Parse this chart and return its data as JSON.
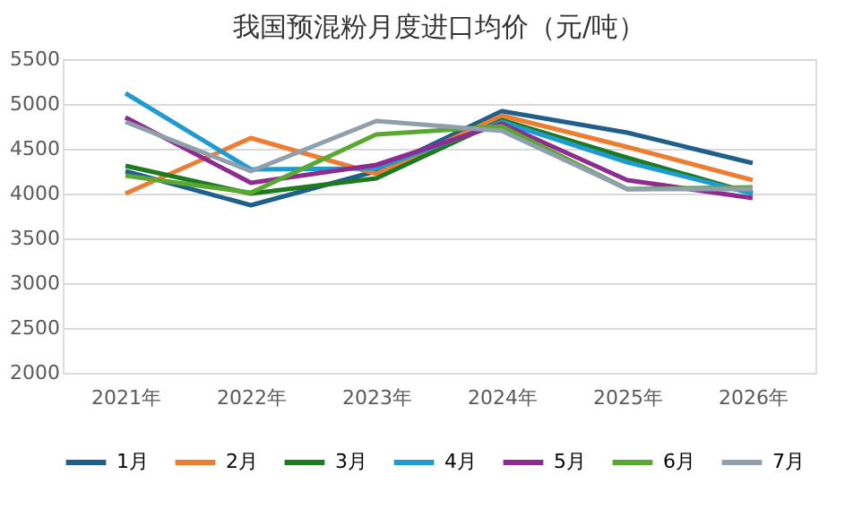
{
  "chart_data": {
    "type": "line",
    "title": "我国预混粉月度进口均价（元/吨）",
    "categories": [
      "2021年",
      "2022年",
      "2023年",
      "2024年",
      "2025年",
      "2026年"
    ],
    "series": [
      {
        "name": "1月",
        "color": "#1f5f8b",
        "values": [
          4250,
          3870,
          4250,
          4920,
          4680,
          4340
        ]
      },
      {
        "name": "2月",
        "color": "#ed7d31",
        "values": [
          4000,
          4620,
          4220,
          4870,
          4520,
          4150
        ]
      },
      {
        "name": "3月",
        "color": "#1e7a1e",
        "values": [
          4310,
          4000,
          4170,
          4820,
          4400,
          4000
        ]
      },
      {
        "name": "4月",
        "color": "#1f9bd0",
        "values": [
          5120,
          4270,
          4280,
          4800,
          4350,
          4000
        ]
      },
      {
        "name": "5月",
        "color": "#8e2b8e",
        "values": [
          4850,
          4120,
          4320,
          4780,
          4150,
          3950
        ]
      },
      {
        "name": "6月",
        "color": "#5aa832",
        "values": [
          4200,
          4010,
          4660,
          4750,
          4050,
          4070
        ]
      },
      {
        "name": "7月",
        "color": "#8f9fab",
        "values": [
          4800,
          4250,
          4810,
          4700,
          4050,
          4050
        ]
      }
    ],
    "ylim": [
      2000,
      5500
    ],
    "yticks": [
      2000,
      2500,
      3000,
      3500,
      4000,
      4500,
      5000,
      5500
    ],
    "grid": "y",
    "legend": "bottom",
    "marker": "none",
    "line_style": "solid"
  }
}
